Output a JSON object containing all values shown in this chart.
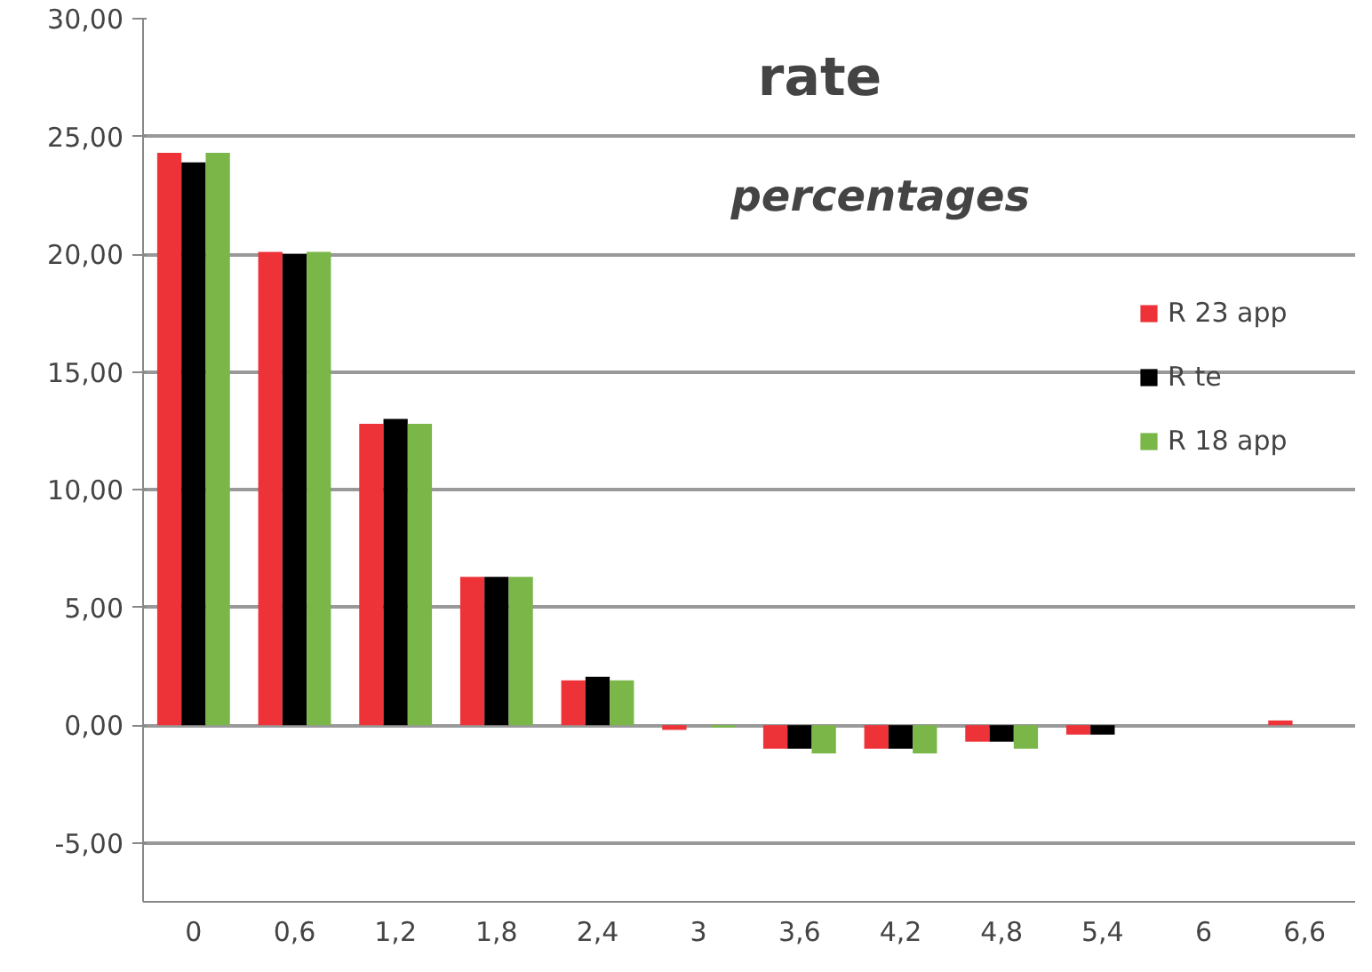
{
  "chart_data": {
    "type": "bar",
    "title": "rate",
    "subtitle": "percentages",
    "categories": [
      "0",
      "0,6",
      "1,2",
      "1,8",
      "2,4",
      "3",
      "3,6",
      "4,2",
      "4,8",
      "5,4",
      "6",
      "6,6"
    ],
    "series": [
      {
        "name": "R 23 app",
        "color": "#ee3338",
        "values": [
          24.3,
          20.1,
          12.8,
          6.3,
          1.9,
          -0.2,
          -1.0,
          -1.0,
          -0.7,
          -0.4,
          0,
          0.2
        ]
      },
      {
        "name": "R te",
        "color": "#000000",
        "values": [
          23.9,
          20.0,
          13.0,
          6.3,
          2.05,
          0,
          -1.0,
          -1.0,
          -0.7,
          -0.4,
          0,
          0
        ]
      },
      {
        "name": "R 18 app",
        "color": "#7ab648",
        "values": [
          24.3,
          20.1,
          12.8,
          6.3,
          1.9,
          -0.1,
          -1.2,
          -1.2,
          -1.0,
          0,
          0,
          0
        ]
      }
    ],
    "ylim": [
      -7.5,
      30
    ],
    "yticks": [
      {
        "value": -5,
        "label": "-5,00"
      },
      {
        "value": 0,
        "label": "0,00"
      },
      {
        "value": 5,
        "label": "5,00"
      },
      {
        "value": 10,
        "label": "10,00"
      },
      {
        "value": 15,
        "label": "15,00"
      },
      {
        "value": 20,
        "label": "20,00"
      },
      {
        "value": 25,
        "label": "25,00"
      },
      {
        "value": 30,
        "label": "30,00"
      }
    ],
    "grid": "y",
    "legend": "right"
  }
}
